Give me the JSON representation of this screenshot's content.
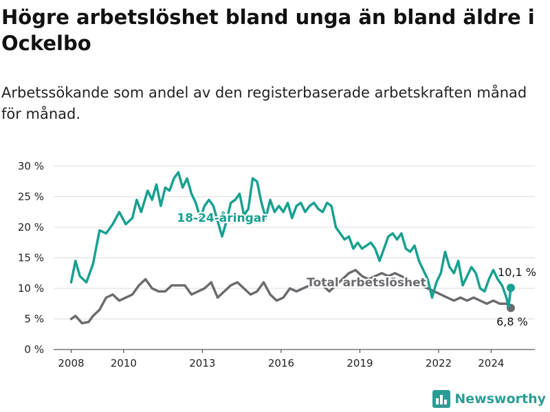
{
  "header": {
    "title": "Högre arbetslöshet bland unga än bland äldre i Ockelbo",
    "subtitle": "Arbetssökande som andel av den registerbaserade arbetskraften månad för månad."
  },
  "brand": {
    "name": "Newsworthy",
    "icon": "bar-chart-logo-icon",
    "color": "#2a9d96"
  },
  "chart_data": {
    "type": "line",
    "title": "Högre arbetslöshet bland unga än bland äldre i Ockelbo",
    "subtitle": "Arbetssökande som andel av den registerbaserade arbetskraften månad för månad.",
    "xlabel": "",
    "ylabel": "",
    "x_ticks": [
      "2008",
      "2010",
      "2013",
      "2016",
      "2019",
      "2022",
      "2024"
    ],
    "y_ticks": [
      "0 %",
      "5 %",
      "10 %",
      "15 %",
      "20 %",
      "25 %",
      "30 %"
    ],
    "ylim": [
      0,
      30
    ],
    "xlim": [
      "2007-05",
      "2025-09"
    ],
    "grid": "horizontal",
    "legend": "inline labels",
    "series": [
      {
        "name": "18-24-åringar",
        "color": "#17a090",
        "end_value_label": "10,1 %",
        "points": [
          [
            "2008-01",
            11.0
          ],
          [
            "2008-03",
            14.5
          ],
          [
            "2008-05",
            12.0
          ],
          [
            "2008-08",
            11.0
          ],
          [
            "2008-11",
            14.0
          ],
          [
            "2009-02",
            19.5
          ],
          [
            "2009-05",
            19.0
          ],
          [
            "2009-08",
            20.5
          ],
          [
            "2009-11",
            22.5
          ],
          [
            "2010-02",
            20.5
          ],
          [
            "2010-05",
            21.5
          ],
          [
            "2010-07",
            24.5
          ],
          [
            "2010-09",
            22.5
          ],
          [
            "2010-12",
            26.0
          ],
          [
            "2011-02",
            24.5
          ],
          [
            "2011-04",
            27.0
          ],
          [
            "2011-06",
            23.5
          ],
          [
            "2011-08",
            26.5
          ],
          [
            "2011-10",
            26.0
          ],
          [
            "2011-12",
            28.0
          ],
          [
            "2012-02",
            29.0
          ],
          [
            "2012-04",
            26.5
          ],
          [
            "2012-06",
            28.0
          ],
          [
            "2012-08",
            25.5
          ],
          [
            "2012-10",
            24.0
          ],
          [
            "2012-12",
            21.5
          ],
          [
            "2013-02",
            23.5
          ],
          [
            "2013-04",
            24.5
          ],
          [
            "2013-06",
            23.5
          ],
          [
            "2013-08",
            21.0
          ],
          [
            "2013-10",
            18.5
          ],
          [
            "2013-12",
            21.0
          ],
          [
            "2014-02",
            24.0
          ],
          [
            "2014-04",
            24.5
          ],
          [
            "2014-06",
            25.5
          ],
          [
            "2014-08",
            22.0
          ],
          [
            "2014-10",
            23.0
          ],
          [
            "2014-12",
            28.0
          ],
          [
            "2015-02",
            27.5
          ],
          [
            "2015-04",
            24.0
          ],
          [
            "2015-06",
            21.5
          ],
          [
            "2015-08",
            24.5
          ],
          [
            "2015-10",
            22.5
          ],
          [
            "2015-12",
            23.5
          ],
          [
            "2016-02",
            22.5
          ],
          [
            "2016-04",
            24.0
          ],
          [
            "2016-06",
            21.5
          ],
          [
            "2016-08",
            23.5
          ],
          [
            "2016-10",
            24.0
          ],
          [
            "2016-12",
            22.5
          ],
          [
            "2017-02",
            23.5
          ],
          [
            "2017-04",
            24.0
          ],
          [
            "2017-06",
            23.0
          ],
          [
            "2017-08",
            22.5
          ],
          [
            "2017-10",
            24.0
          ],
          [
            "2017-12",
            23.5
          ],
          [
            "2018-02",
            20.0
          ],
          [
            "2018-04",
            19.0
          ],
          [
            "2018-06",
            18.0
          ],
          [
            "2018-08",
            18.5
          ],
          [
            "2018-10",
            16.5
          ],
          [
            "2018-12",
            17.5
          ],
          [
            "2019-02",
            16.5
          ],
          [
            "2019-04",
            17.0
          ],
          [
            "2019-06",
            17.5
          ],
          [
            "2019-08",
            16.5
          ],
          [
            "2019-10",
            14.5
          ],
          [
            "2019-12",
            16.5
          ],
          [
            "2020-02",
            18.5
          ],
          [
            "2020-04",
            19.0
          ],
          [
            "2020-06",
            18.0
          ],
          [
            "2020-08",
            19.0
          ],
          [
            "2020-10",
            16.5
          ],
          [
            "2020-12",
            16.0
          ],
          [
            "2021-02",
            17.0
          ],
          [
            "2021-04",
            14.5
          ],
          [
            "2021-06",
            13.0
          ],
          [
            "2021-08",
            11.5
          ],
          [
            "2021-10",
            8.5
          ],
          [
            "2021-12",
            11.0
          ],
          [
            "2022-02",
            12.5
          ],
          [
            "2022-04",
            16.0
          ],
          [
            "2022-06",
            13.5
          ],
          [
            "2022-08",
            12.5
          ],
          [
            "2022-10",
            14.5
          ],
          [
            "2022-12",
            10.5
          ],
          [
            "2023-02",
            12.0
          ],
          [
            "2023-04",
            13.5
          ],
          [
            "2023-06",
            12.5
          ],
          [
            "2023-08",
            10.0
          ],
          [
            "2023-10",
            9.5
          ],
          [
            "2023-12",
            11.5
          ],
          [
            "2024-02",
            13.0
          ],
          [
            "2024-04",
            11.5
          ],
          [
            "2024-06",
            10.5
          ],
          [
            "2024-08",
            8.5
          ],
          [
            "2024-09",
            7.0
          ],
          [
            "2024-10",
            10.1
          ]
        ]
      },
      {
        "name": "Total arbetslöshet",
        "color": "#6b6a6f",
        "end_value_label": "6,8 %",
        "points": [
          [
            "2008-01",
            5.0
          ],
          [
            "2008-03",
            5.5
          ],
          [
            "2008-06",
            4.3
          ],
          [
            "2008-09",
            4.5
          ],
          [
            "2008-11",
            5.5
          ],
          [
            "2009-02",
            6.5
          ],
          [
            "2009-05",
            8.5
          ],
          [
            "2009-08",
            9.0
          ],
          [
            "2009-11",
            8.0
          ],
          [
            "2010-02",
            8.5
          ],
          [
            "2010-05",
            9.0
          ],
          [
            "2010-08",
            10.5
          ],
          [
            "2010-11",
            11.5
          ],
          [
            "2011-02",
            10.0
          ],
          [
            "2011-05",
            9.5
          ],
          [
            "2011-08",
            9.5
          ],
          [
            "2011-11",
            10.5
          ],
          [
            "2012-02",
            10.5
          ],
          [
            "2012-05",
            10.5
          ],
          [
            "2012-08",
            9.0
          ],
          [
            "2012-11",
            9.5
          ],
          [
            "2013-02",
            10.0
          ],
          [
            "2013-05",
            11.0
          ],
          [
            "2013-08",
            8.5
          ],
          [
            "2013-11",
            9.5
          ],
          [
            "2014-02",
            10.5
          ],
          [
            "2014-05",
            11.0
          ],
          [
            "2014-08",
            10.0
          ],
          [
            "2014-11",
            9.0
          ],
          [
            "2015-02",
            9.5
          ],
          [
            "2015-05",
            11.0
          ],
          [
            "2015-08",
            9.0
          ],
          [
            "2015-11",
            8.0
          ],
          [
            "2016-02",
            8.5
          ],
          [
            "2016-05",
            10.0
          ],
          [
            "2016-08",
            9.5
          ],
          [
            "2016-11",
            10.0
          ],
          [
            "2017-02",
            10.5
          ],
          [
            "2017-05",
            11.0
          ],
          [
            "2017-08",
            10.5
          ],
          [
            "2017-11",
            9.5
          ],
          [
            "2018-02",
            10.5
          ],
          [
            "2018-05",
            11.5
          ],
          [
            "2018-08",
            12.5
          ],
          [
            "2018-11",
            13.0
          ],
          [
            "2019-02",
            12.0
          ],
          [
            "2019-05",
            11.5
          ],
          [
            "2019-08",
            12.0
          ],
          [
            "2019-11",
            12.5
          ],
          [
            "2020-02",
            12.0
          ],
          [
            "2020-05",
            12.5
          ],
          [
            "2020-08",
            12.0
          ],
          [
            "2020-11",
            11.5
          ],
          [
            "2021-02",
            11.0
          ],
          [
            "2021-05",
            10.5
          ],
          [
            "2021-08",
            10.0
          ],
          [
            "2021-11",
            9.5
          ],
          [
            "2022-02",
            9.0
          ],
          [
            "2022-05",
            8.5
          ],
          [
            "2022-08",
            8.0
          ],
          [
            "2022-11",
            8.5
          ],
          [
            "2023-02",
            8.0
          ],
          [
            "2023-05",
            8.5
          ],
          [
            "2023-08",
            8.0
          ],
          [
            "2023-11",
            7.5
          ],
          [
            "2024-02",
            8.0
          ],
          [
            "2024-05",
            7.5
          ],
          [
            "2024-08",
            7.5
          ],
          [
            "2024-10",
            6.8
          ]
        ]
      }
    ]
  }
}
